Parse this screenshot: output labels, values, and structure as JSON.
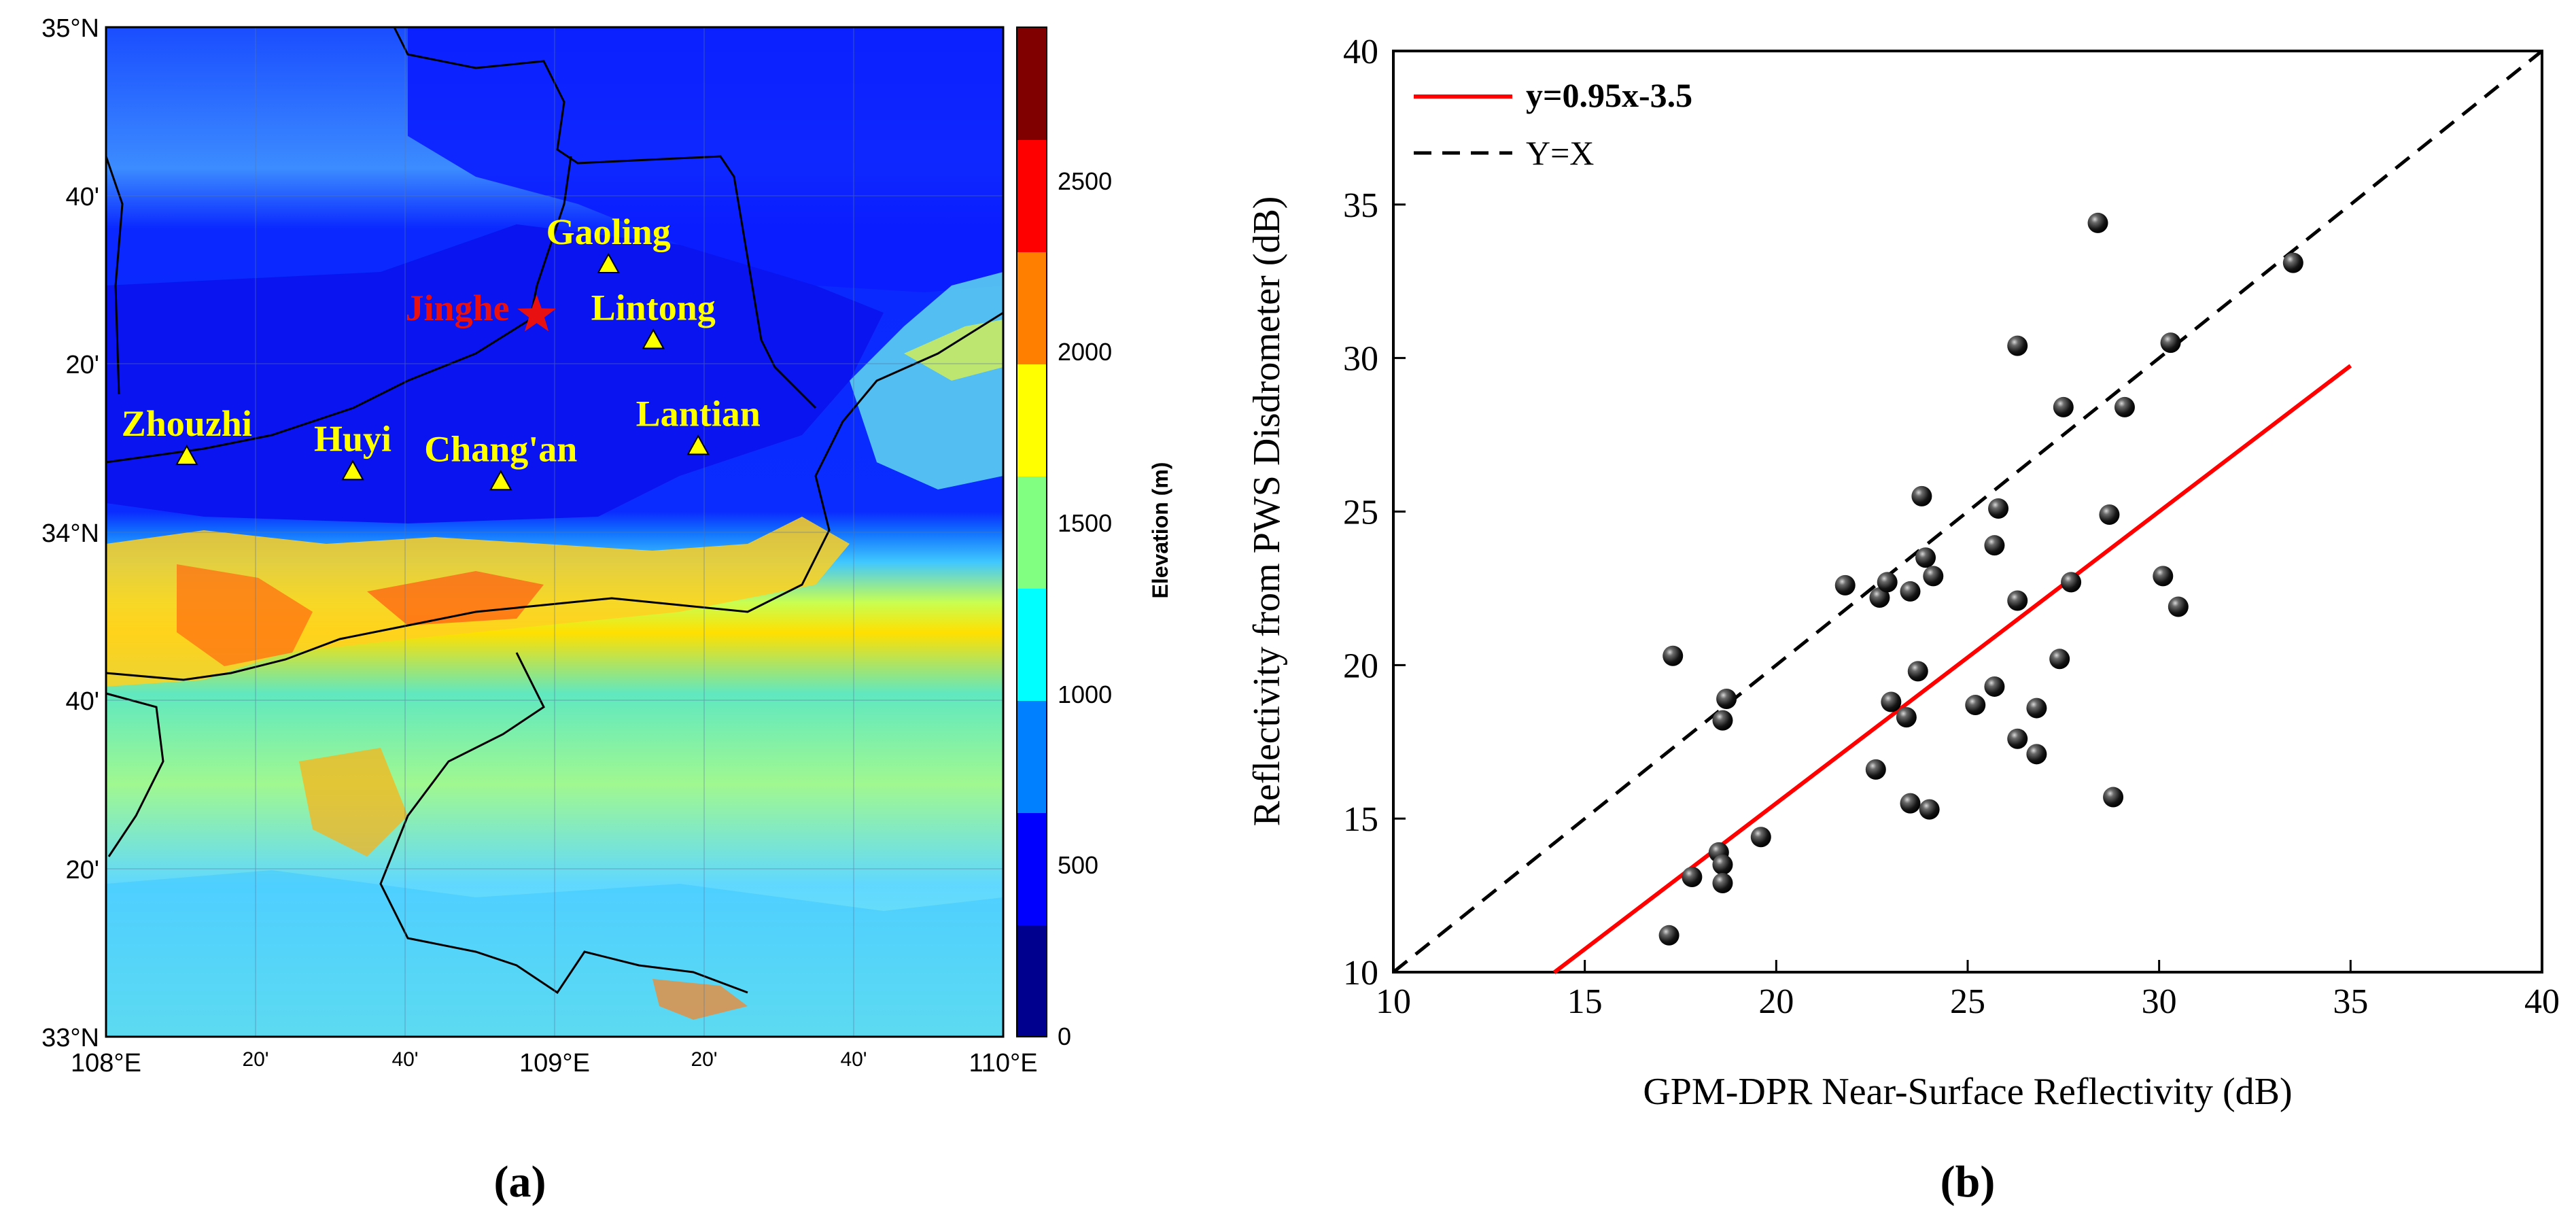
{
  "panel_a": {
    "caption": "(a)",
    "lat_labels": [
      "35°N",
      "40'",
      "20'",
      "34°N",
      "40'",
      "20'",
      "33°N"
    ],
    "lon_labels": [
      "108°E",
      "20'",
      "40'",
      "109°E",
      "20'",
      "40'",
      "110°E"
    ],
    "colorbar": {
      "label": "Elevation (m)",
      "ticks": [
        "0",
        "500",
        "1000",
        "1500",
        "2000",
        "2500"
      ],
      "colors": [
        "#00008f",
        "#0000ff",
        "#0080ff",
        "#00ffff",
        "#80ff80",
        "#ffff00",
        "#ff8000",
        "#ff0000",
        "#800000"
      ]
    },
    "stations": [
      {
        "name": "Gaoling",
        "symbol": "triangle",
        "lon": 109.12,
        "lat": 34.53
      },
      {
        "name": "Lintong",
        "symbol": "triangle",
        "lon": 109.22,
        "lat": 34.38
      },
      {
        "name": "Zhouzhi",
        "symbol": "triangle",
        "lon": 108.18,
        "lat": 34.15
      },
      {
        "name": "Huyi",
        "symbol": "triangle",
        "lon": 108.55,
        "lat": 34.12
      },
      {
        "name": "Chang'an",
        "symbol": "triangle",
        "lon": 108.88,
        "lat": 34.1
      },
      {
        "name": "Lantian",
        "symbol": "triangle",
        "lon": 109.32,
        "lat": 34.17
      },
      {
        "name": "Jinghe",
        "symbol": "star",
        "lon": 108.96,
        "lat": 34.43
      }
    ],
    "station_label_color": "#ffff00",
    "jinghe_color": "#e81010"
  },
  "panel_b": {
    "caption": "(b)",
    "chart_data": {
      "type": "scatter",
      "title": "",
      "xlabel": "GPM-DPR Near-Surface Reflectivity (dB)",
      "ylabel": "Reflectivity from PWS Disdrometer (dB)",
      "xlim": [
        10,
        40
      ],
      "ylim": [
        10,
        40
      ],
      "xticks": [
        "10",
        "15",
        "20",
        "25",
        "30",
        "35",
        "40"
      ],
      "yticks": [
        "10",
        "15",
        "20",
        "25",
        "30",
        "35",
        "40"
      ],
      "legend": [
        {
          "label": "y=0.95x-3.5",
          "style": "solid",
          "color": "#ff0000"
        },
        {
          "label": "Y=X",
          "style": "dashed",
          "color": "#000000"
        }
      ],
      "legend_position": "top-left",
      "fit_line": {
        "slope": 0.95,
        "intercept": -3.5,
        "x_range": [
          14.2,
          35
        ]
      },
      "identity_line": {
        "x_range": [
          10,
          40
        ]
      },
      "points": [
        {
          "x": 17.2,
          "y": 11.2
        },
        {
          "x": 17.3,
          "y": 20.3
        },
        {
          "x": 17.8,
          "y": 13.1
        },
        {
          "x": 18.5,
          "y": 13.9
        },
        {
          "x": 18.6,
          "y": 13.5
        },
        {
          "x": 18.6,
          "y": 12.9
        },
        {
          "x": 18.6,
          "y": 18.2
        },
        {
          "x": 18.7,
          "y": 18.9
        },
        {
          "x": 19.6,
          "y": 14.4
        },
        {
          "x": 21.8,
          "y": 22.6
        },
        {
          "x": 22.6,
          "y": 16.6
        },
        {
          "x": 22.7,
          "y": 22.2
        },
        {
          "x": 22.9,
          "y": 22.7
        },
        {
          "x": 23.0,
          "y": 18.8
        },
        {
          "x": 23.4,
          "y": 18.3
        },
        {
          "x": 23.5,
          "y": 15.5
        },
        {
          "x": 23.5,
          "y": 22.4
        },
        {
          "x": 23.7,
          "y": 19.8
        },
        {
          "x": 23.8,
          "y": 25.5
        },
        {
          "x": 23.9,
          "y": 23.5
        },
        {
          "x": 24.1,
          "y": 22.9
        },
        {
          "x": 24.0,
          "y": 15.3
        },
        {
          "x": 25.2,
          "y": 18.7
        },
        {
          "x": 25.7,
          "y": 23.9
        },
        {
          "x": 25.7,
          "y": 19.3
        },
        {
          "x": 25.8,
          "y": 25.1
        },
        {
          "x": 26.3,
          "y": 17.6
        },
        {
          "x": 26.3,
          "y": 22.1
        },
        {
          "x": 26.3,
          "y": 30.4
        },
        {
          "x": 26.8,
          "y": 18.6
        },
        {
          "x": 26.8,
          "y": 17.1
        },
        {
          "x": 27.4,
          "y": 20.2
        },
        {
          "x": 27.5,
          "y": 28.4
        },
        {
          "x": 27.7,
          "y": 22.7
        },
        {
          "x": 28.4,
          "y": 34.4
        },
        {
          "x": 28.7,
          "y": 24.9
        },
        {
          "x": 28.8,
          "y": 15.7
        },
        {
          "x": 29.1,
          "y": 28.4
        },
        {
          "x": 30.1,
          "y": 22.9
        },
        {
          "x": 30.3,
          "y": 30.5
        },
        {
          "x": 30.5,
          "y": 21.9
        },
        {
          "x": 33.5,
          "y": 33.1
        }
      ]
    }
  }
}
